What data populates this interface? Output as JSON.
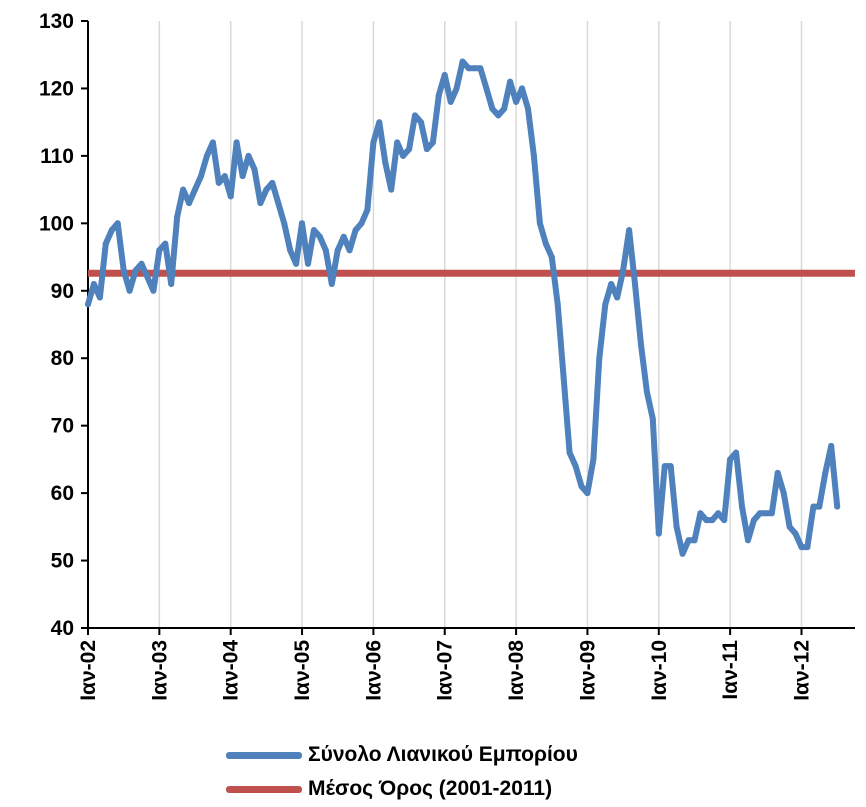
{
  "chart_data": {
    "type": "line",
    "ylim": [
      40,
      130
    ],
    "yticks": [
      "40",
      "50",
      "60",
      "70",
      "80",
      "90",
      "100",
      "110",
      "120",
      "130"
    ],
    "x_tick_labels": [
      "Ιαν-02",
      "Ιαν-03",
      "Ιαν-04",
      "Ιαν-05",
      "Ιαν-06",
      "Ιαν-07",
      "Ιαν-08",
      "Ιαν-09",
      "Ιαν-10",
      "Ιαν-11",
      "Ιαν-12"
    ],
    "x_start": "2002-01",
    "x_end": "2012-10",
    "grid": "vertical",
    "legend_position": "bottom",
    "series": [
      {
        "name": "Σύνολο Λιανικού Εμπορίου",
        "color": "#4f81bd",
        "values": [
          88,
          91,
          89,
          97,
          99,
          100,
          93,
          90,
          93,
          94,
          92,
          90,
          96,
          97,
          91,
          101,
          105,
          103,
          105,
          107,
          110,
          112,
          106,
          107,
          104,
          112,
          107,
          110,
          108,
          103,
          105,
          106,
          103,
          100,
          96,
          94,
          100,
          94,
          99,
          98,
          96,
          91,
          96,
          98,
          96,
          99,
          100,
          102,
          112,
          115,
          109,
          105,
          112,
          110,
          111,
          116,
          115,
          111,
          112,
          119,
          122,
          118,
          120,
          124,
          123,
          123,
          123,
          120,
          117,
          116,
          117,
          121,
          118,
          120,
          117,
          110,
          100,
          97,
          95,
          88,
          77,
          66,
          64,
          61,
          60,
          65,
          80,
          88,
          91,
          89,
          93,
          99,
          91,
          82,
          75,
          71,
          54,
          64,
          64,
          55,
          51,
          53,
          53,
          57,
          56,
          56,
          57,
          56,
          65,
          66,
          58,
          53,
          56,
          57,
          57,
          57,
          63,
          60,
          55,
          54,
          52,
          52,
          58,
          58,
          63,
          67,
          58
        ]
      },
      {
        "name": "Μέσος Όρος (2001-2011)",
        "color": "#c0504d",
        "constant": 92.6
      }
    ]
  }
}
